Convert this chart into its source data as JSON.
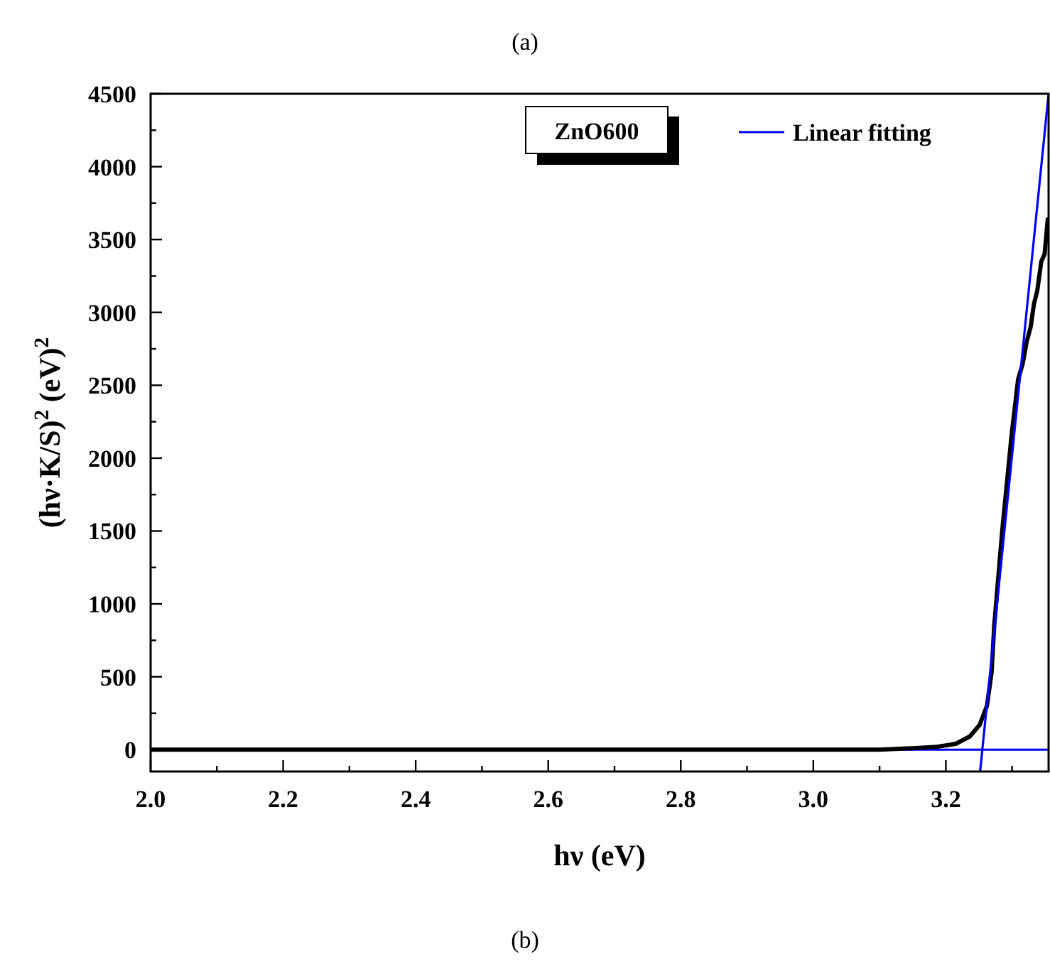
{
  "chart_data": {
    "type": "line",
    "xlabel": "hν (eV)",
    "ylabel": "(hν·K/S)$^{2}$ (eV)$^{2}$",
    "xlim": [
      2.0,
      3.355
    ],
    "ylim": [
      -150,
      4500
    ],
    "xticks": [
      {
        "value": 2.0,
        "label": "2.0"
      },
      {
        "value": 2.1,
        "label": null
      },
      2.2,
      {
        "value": 2.3,
        "label": null
      },
      2.4,
      {
        "value": 2.5,
        "label": null
      },
      2.6,
      {
        "value": 2.7,
        "label": null
      },
      2.8,
      {
        "value": 2.9,
        "label": null
      },
      {
        "value": 3.0,
        "label": "3.0"
      },
      {
        "value": 3.1,
        "label": null
      },
      3.2,
      {
        "value": 3.3,
        "label": null
      }
    ],
    "yticks": [
      0,
      {
        "value": 250,
        "label": null
      },
      500,
      {
        "value": 750,
        "label": null
      },
      1000,
      {
        "value": 1250,
        "label": null
      },
      1500,
      {
        "value": 1750,
        "label": null
      },
      2000,
      {
        "value": 2250,
        "label": null
      },
      2500,
      {
        "value": 2750,
        "label": null
      },
      3000,
      {
        "value": 3250,
        "label": null
      },
      3500,
      {
        "value": 3750,
        "label": null
      },
      4000,
      {
        "value": 4250,
        "label": null
      },
      4500
    ],
    "series": [
      {
        "color": "#000000",
        "x": [
          2.0,
          2.4,
          2.8,
          3.0,
          3.1,
          3.15,
          3.187,
          3.215,
          3.236,
          3.251,
          3.262,
          3.269,
          3.273,
          3.285,
          3.299,
          3.309,
          3.316,
          3.322,
          3.328,
          3.333,
          3.338,
          3.344,
          3.349,
          3.354
        ],
        "values": [
          0,
          0,
          0,
          0,
          0,
          10,
          20,
          40,
          90,
          170,
          300,
          530,
          850,
          1500,
          2150,
          2540,
          2650,
          2800,
          2900,
          3060,
          3150,
          3350,
          3400,
          3650
        ]
      },
      {
        "name": "Linear fitting",
        "color": "#0000ff",
        "x": [
          3.2517,
          3.355
        ],
        "values": [
          -150,
          4500
        ]
      }
    ],
    "ref_lines": [
      {
        "axis": "y",
        "value": 0,
        "color": "#0000ff"
      }
    ],
    "legend": "top right",
    "grid": false,
    "annotations": [
      "ZnO600",
      "(a)",
      "(b)"
    ]
  }
}
